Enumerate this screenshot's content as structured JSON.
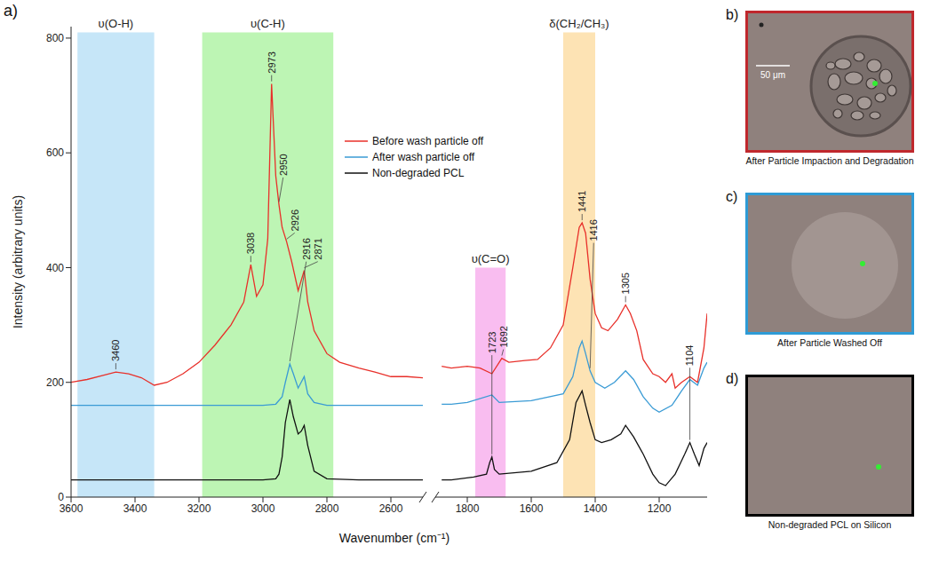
{
  "chart_data": {
    "type": "line",
    "panel_label": "a)",
    "x_label": "Wavenumber (cm⁻¹)",
    "y_label": "Intensity (arbitrary units)",
    "x_segments": [
      {
        "xlim": [
          3600,
          2500
        ],
        "xticks": [
          3600,
          3400,
          3200,
          3000,
          2800,
          2600
        ]
      },
      {
        "xlim": [
          1900,
          1050
        ],
        "xticks": [
          1800,
          1600,
          1400,
          1200
        ]
      }
    ],
    "ylim": [
      0,
      820
    ],
    "yticks": [
      0,
      200,
      400,
      600,
      800
    ],
    "legend": "top",
    "regions": [
      {
        "label": "υ(O-H)",
        "x": [
          3580,
          3340
        ],
        "y": [
          0,
          810
        ],
        "color": "#c6e6f8"
      },
      {
        "label": "υ(C-H)",
        "x": [
          3190,
          2780
        ],
        "y": [
          0,
          810
        ],
        "color": "#bdf5b4"
      },
      {
        "label": "υ(C=O)",
        "x": [
          1775,
          1680
        ],
        "y": [
          0,
          400
        ],
        "color": "#f9bdf0"
      },
      {
        "label": "δ(CH₂/CH₃)",
        "x": [
          1500,
          1400
        ],
        "y": [
          0,
          810
        ],
        "color": "#fde3b4"
      }
    ],
    "series": [
      {
        "name": "Before wash particle off",
        "color": "#e8302a",
        "peaks": [
          3460,
          3038,
          2973,
          2950,
          2926,
          2871,
          1692,
          1441,
          1305
        ],
        "x": [
          3600,
          3550,
          3500,
          3460,
          3420,
          3380,
          3340,
          3300,
          3250,
          3200,
          3150,
          3100,
          3060,
          3038,
          3020,
          3000,
          2985,
          2973,
          2960,
          2950,
          2940,
          2926,
          2910,
          2890,
          2871,
          2860,
          2840,
          2800,
          2760,
          2700,
          2650,
          2600,
          2550,
          2500,
          1880,
          1850,
          1800,
          1760,
          1723,
          1700,
          1692,
          1670,
          1620,
          1580,
          1540,
          1500,
          1470,
          1450,
          1441,
          1430,
          1416,
          1400,
          1380,
          1360,
          1330,
          1305,
          1290,
          1270,
          1250,
          1220,
          1200,
          1180,
          1160,
          1150,
          1130,
          1104,
          1080,
          1060,
          1050
        ],
        "values": [
          200,
          205,
          212,
          218,
          215,
          208,
          195,
          200,
          215,
          235,
          265,
          300,
          340,
          405,
          350,
          370,
          450,
          720,
          560,
          510,
          470,
          445,
          410,
          360,
          395,
          340,
          290,
          250,
          235,
          225,
          218,
          210,
          210,
          208,
          228,
          225,
          228,
          225,
          215,
          235,
          242,
          235,
          238,
          240,
          260,
          300,
          400,
          470,
          478,
          460,
          380,
          320,
          295,
          290,
          310,
          335,
          320,
          290,
          240,
          215,
          210,
          200,
          215,
          190,
          200,
          210,
          200,
          260,
          320
        ]
      },
      {
        "name": "After wash particle off",
        "color": "#3a9bd5",
        "peaks": [
          2916,
          1416
        ],
        "x": [
          3600,
          3400,
          3200,
          3000,
          2960,
          2940,
          2930,
          2916,
          2905,
          2890,
          2871,
          2860,
          2840,
          2800,
          2700,
          2600,
          2500,
          1880,
          1850,
          1800,
          1723,
          1700,
          1600,
          1500,
          1470,
          1450,
          1441,
          1430,
          1416,
          1400,
          1370,
          1340,
          1305,
          1280,
          1250,
          1220,
          1200,
          1160,
          1130,
          1104,
          1080,
          1060,
          1050
        ],
        "values": [
          160,
          160,
          160,
          160,
          162,
          175,
          200,
          232,
          215,
          190,
          210,
          180,
          165,
          160,
          160,
          160,
          160,
          162,
          162,
          165,
          178,
          165,
          168,
          180,
          210,
          260,
          272,
          250,
          220,
          200,
          190,
          200,
          220,
          205,
          175,
          155,
          148,
          160,
          185,
          205,
          195,
          225,
          235
        ]
      },
      {
        "name": "Non-degraded PCL",
        "color": "#111111",
        "peaks": [
          1723,
          1104
        ],
        "x": [
          3600,
          3400,
          3200,
          3000,
          2960,
          2950,
          2940,
          2930,
          2916,
          2905,
          2890,
          2880,
          2871,
          2860,
          2840,
          2800,
          2700,
          2600,
          2500,
          1880,
          1850,
          1780,
          1740,
          1730,
          1723,
          1715,
          1700,
          1600,
          1520,
          1480,
          1460,
          1441,
          1430,
          1416,
          1400,
          1380,
          1350,
          1320,
          1305,
          1280,
          1250,
          1220,
          1200,
          1180,
          1150,
          1120,
          1104,
          1090,
          1075,
          1060,
          1050
        ],
        "values": [
          30,
          30,
          30,
          30,
          32,
          40,
          70,
          130,
          170,
          140,
          110,
          115,
          125,
          90,
          45,
          32,
          30,
          30,
          30,
          30,
          30,
          35,
          40,
          60,
          70,
          48,
          40,
          45,
          60,
          100,
          165,
          185,
          160,
          130,
          100,
          95,
          100,
          110,
          125,
          105,
          75,
          40,
          25,
          20,
          40,
          75,
          95,
          75,
          55,
          85,
          95
        ]
      }
    ]
  },
  "images": [
    {
      "label": "b)",
      "caption": "After Particle Impaction and Degradation",
      "border": "#c0282d",
      "scale_bar": "50 μm"
    },
    {
      "label": "c)",
      "caption": "After Particle Washed Off",
      "border": "#2e9bd6"
    },
    {
      "label": "d)",
      "caption": "Non-degraded PCL on Silicon",
      "border": "#000000"
    }
  ]
}
